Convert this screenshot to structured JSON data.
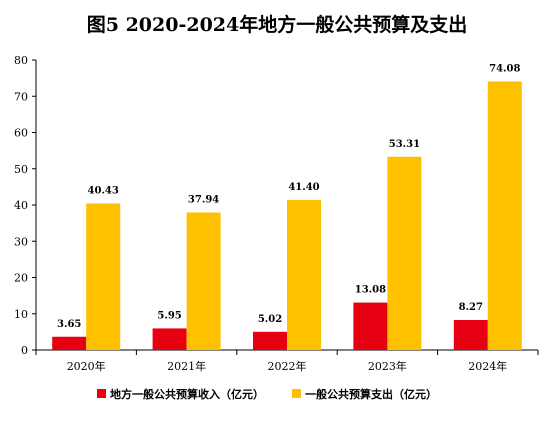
{
  "chart_data": {
    "type": "bar",
    "title": "图5  2020-2024年地方一般公共预算及支出",
    "xlabel": "",
    "ylabel": "",
    "ylim": [
      0,
      80
    ],
    "yticks": [
      0,
      10,
      20,
      30,
      40,
      50,
      60,
      70,
      80
    ],
    "grid": false,
    "legend_position": "bottom",
    "categories": [
      "2020年",
      "2021年",
      "2022年",
      "2023年",
      "2024年"
    ],
    "series": [
      {
        "name": "地方一般公共预算收入（亿元）",
        "color": "#e60012",
        "values": [
          3.65,
          5.95,
          5.02,
          13.08,
          8.27
        ],
        "labels": [
          "3.65",
          "5.95",
          "5.02",
          "13.08",
          "8.27"
        ]
      },
      {
        "name": "一般公共预算支出（亿元）",
        "color": "#ffc000",
        "values": [
          40.43,
          37.94,
          41.4,
          53.31,
          74.08
        ],
        "labels": [
          "40.43",
          "37.94",
          "41.40",
          "53.31",
          "74.08"
        ]
      }
    ]
  }
}
